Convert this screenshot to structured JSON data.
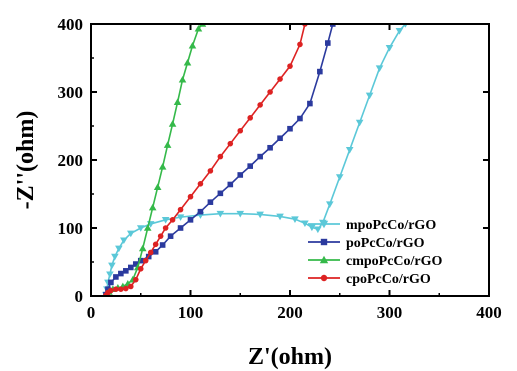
{
  "chart_data": {
    "type": "line",
    "xlabel": "Z'(ohm)",
    "ylabel": "-Z''(ohm)",
    "xlim": [
      0,
      400
    ],
    "ylim": [
      0,
      400
    ],
    "xticks": [
      0,
      100,
      200,
      300,
      400
    ],
    "yticks": [
      0,
      100,
      200,
      300,
      400
    ],
    "grid": false,
    "legend_position": "bottom-right",
    "series": [
      {
        "name": "mpoPcCo/rGO",
        "color": "#5bc8d8",
        "marker": "triangle-down",
        "points": [
          [
            15,
            2
          ],
          [
            16,
            10
          ],
          [
            17,
            20
          ],
          [
            19,
            32
          ],
          [
            21,
            45
          ],
          [
            24,
            58
          ],
          [
            28,
            70
          ],
          [
            33,
            82
          ],
          [
            40,
            92
          ],
          [
            50,
            100
          ],
          [
            60,
            106
          ],
          [
            75,
            112
          ],
          [
            90,
            116
          ],
          [
            110,
            119
          ],
          [
            130,
            121
          ],
          [
            150,
            121
          ],
          [
            170,
            120
          ],
          [
            190,
            117
          ],
          [
            205,
            113
          ],
          [
            215,
            107
          ],
          [
            222,
            101
          ],
          [
            228,
            98
          ],
          [
            233,
            108
          ],
          [
            240,
            135
          ],
          [
            250,
            175
          ],
          [
            260,
            215
          ],
          [
            270,
            255
          ],
          [
            280,
            295
          ],
          [
            290,
            335
          ],
          [
            300,
            365
          ],
          [
            310,
            390
          ],
          [
            316,
            400
          ]
        ]
      },
      {
        "name": "poPcCo/rGO",
        "color": "#2b3a9e",
        "marker": "square",
        "points": [
          [
            15,
            2
          ],
          [
            17,
            10
          ],
          [
            20,
            20
          ],
          [
            25,
            28
          ],
          [
            30,
            33
          ],
          [
            35,
            37
          ],
          [
            40,
            42
          ],
          [
            45,
            47
          ],
          [
            50,
            52
          ],
          [
            58,
            58
          ],
          [
            65,
            65
          ],
          [
            72,
            75
          ],
          [
            80,
            88
          ],
          [
            90,
            100
          ],
          [
            100,
            112
          ],
          [
            110,
            124
          ],
          [
            120,
            138
          ],
          [
            130,
            151
          ],
          [
            140,
            164
          ],
          [
            150,
            178
          ],
          [
            160,
            191
          ],
          [
            170,
            205
          ],
          [
            180,
            218
          ],
          [
            190,
            232
          ],
          [
            200,
            246
          ],
          [
            210,
            261
          ],
          [
            220,
            283
          ],
          [
            230,
            330
          ],
          [
            238,
            372
          ],
          [
            243,
            400
          ]
        ]
      },
      {
        "name": "cmpoPcCo/rGO",
        "color": "#35b94a",
        "marker": "triangle-up",
        "points": [
          [
            15,
            1
          ],
          [
            18,
            6
          ],
          [
            22,
            10
          ],
          [
            27,
            12
          ],
          [
            32,
            14
          ],
          [
            37,
            18
          ],
          [
            42,
            24
          ],
          [
            47,
            42
          ],
          [
            52,
            70
          ],
          [
            57,
            100
          ],
          [
            62,
            130
          ],
          [
            67,
            160
          ],
          [
            72,
            190
          ],
          [
            77,
            222
          ],
          [
            82,
            253
          ],
          [
            87,
            285
          ],
          [
            92,
            318
          ],
          [
            97,
            343
          ],
          [
            102,
            368
          ],
          [
            108,
            393
          ],
          [
            112,
            400
          ]
        ]
      },
      {
        "name": "cpoPcCo/rGO",
        "color": "#dd2222",
        "marker": "circle",
        "points": [
          [
            15,
            1
          ],
          [
            17,
            5
          ],
          [
            20,
            8
          ],
          [
            25,
            10
          ],
          [
            30,
            10
          ],
          [
            35,
            11
          ],
          [
            40,
            14
          ],
          [
            45,
            24
          ],
          [
            50,
            40
          ],
          [
            55,
            52
          ],
          [
            60,
            64
          ],
          [
            65,
            76
          ],
          [
            70,
            88
          ],
          [
            75,
            100
          ],
          [
            82,
            112
          ],
          [
            90,
            127
          ],
          [
            100,
            146
          ],
          [
            110,
            165
          ],
          [
            120,
            184
          ],
          [
            130,
            205
          ],
          [
            140,
            224
          ],
          [
            150,
            243
          ],
          [
            160,
            262
          ],
          [
            170,
            281
          ],
          [
            180,
            300
          ],
          [
            190,
            319
          ],
          [
            200,
            338
          ],
          [
            210,
            370
          ],
          [
            215,
            400
          ]
        ]
      }
    ]
  }
}
